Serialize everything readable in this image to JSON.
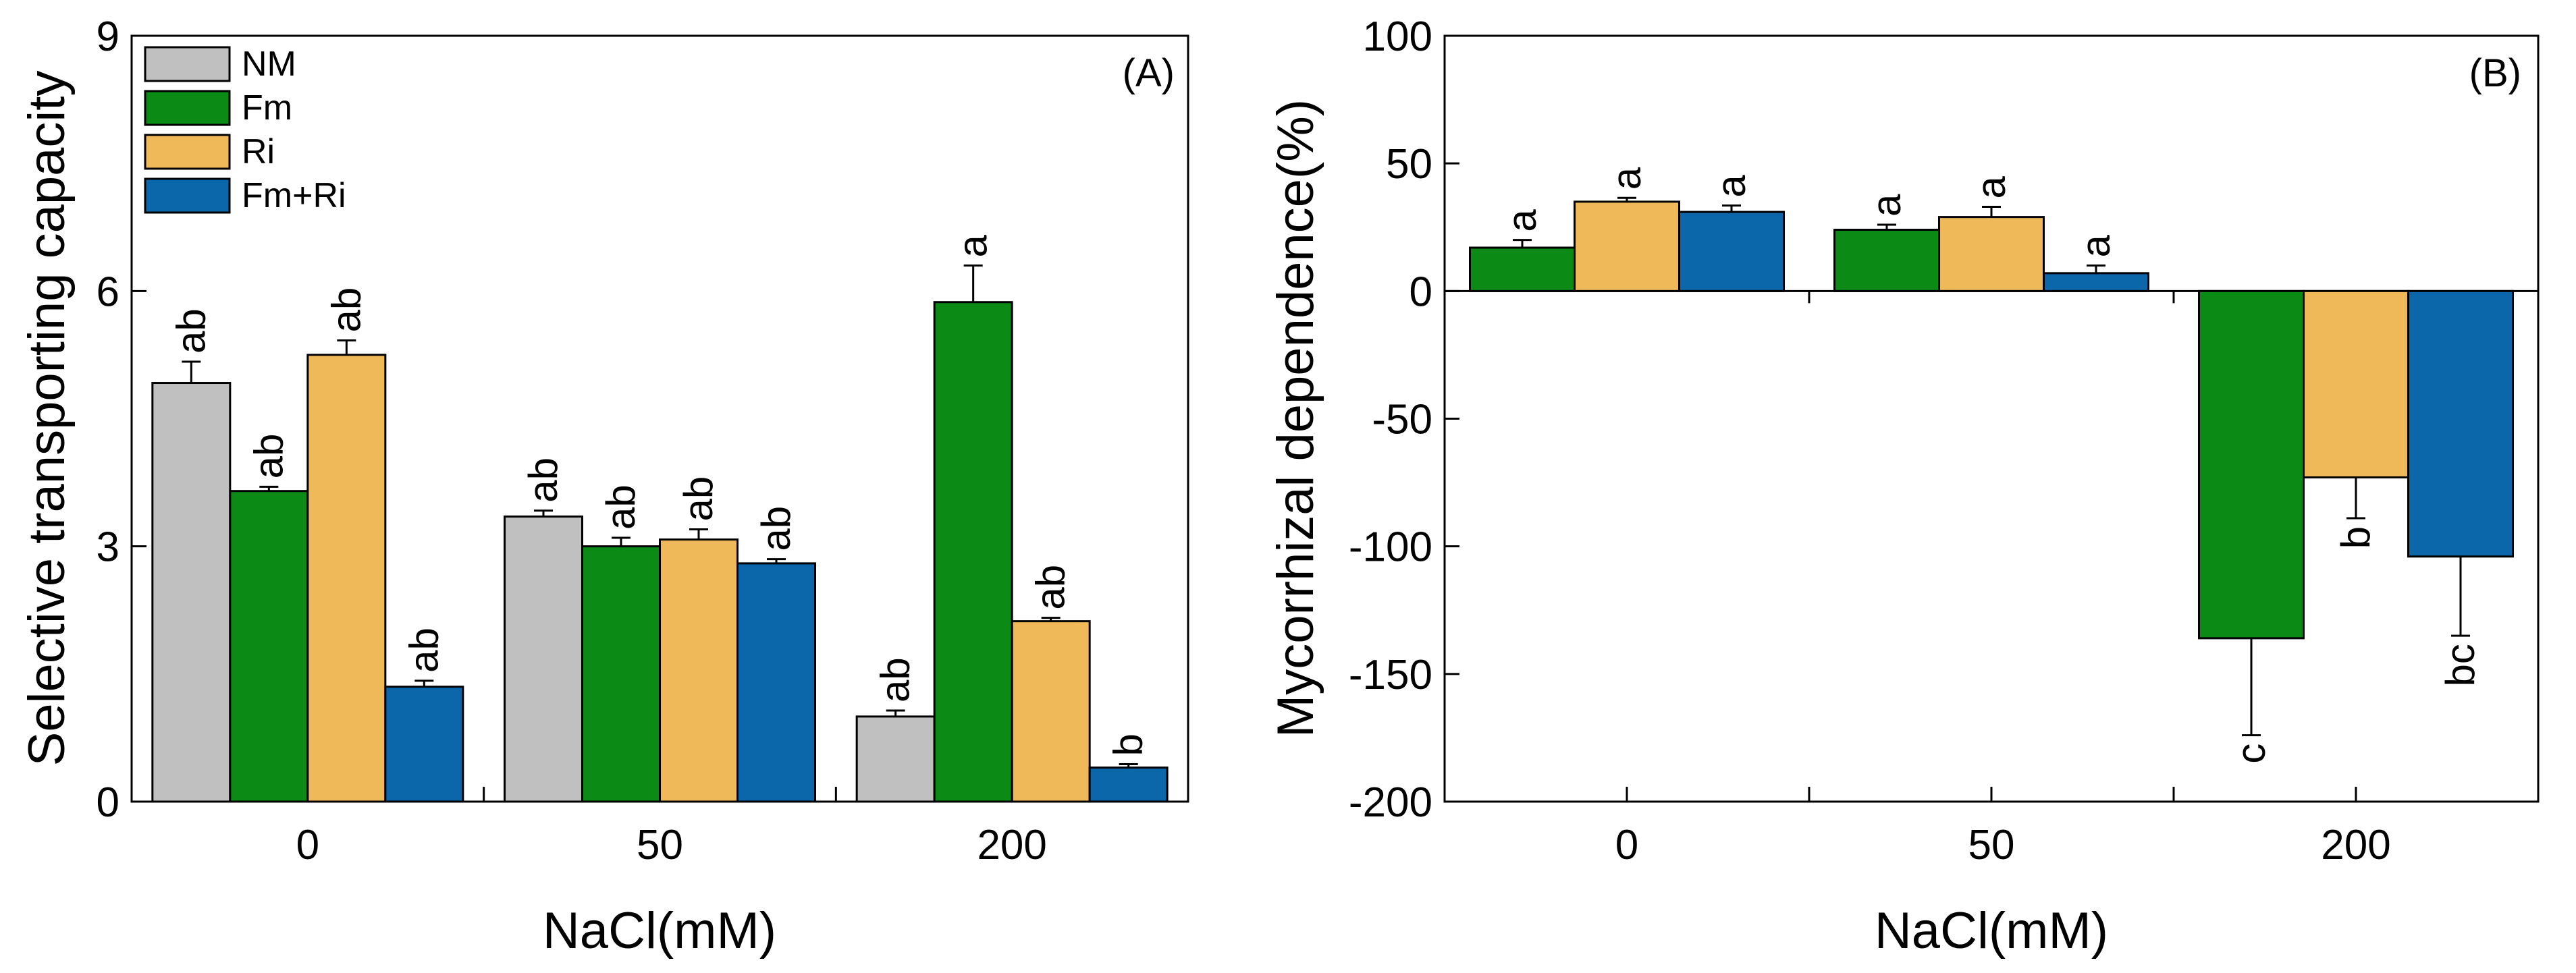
{
  "colors": {
    "NM": "#c0c0c0",
    "Fm": "#0b8a16",
    "Ri": "#efb95a",
    "Fm+Ri": "#0b67aa"
  },
  "chart_data": [
    {
      "type": "bar",
      "panel_label": "(A)",
      "categories": [
        "0",
        "50",
        "200"
      ],
      "xlabel": "NaCl(mM)",
      "ylabel": "Selective transporting capacity",
      "ylim": [
        0,
        9
      ],
      "yticks": [
        "0",
        "3",
        "6",
        "9"
      ],
      "legend": [
        "NM",
        "Fm",
        "Ri",
        "Fm+Ri"
      ],
      "legend_position": "top-left",
      "series": [
        {
          "name": "NM",
          "values": [
            4.92,
            3.35,
            1.0
          ],
          "errors": [
            0.25,
            0.07,
            0.07
          ],
          "labels": [
            "ab",
            "ab",
            "ab"
          ]
        },
        {
          "name": "Fm",
          "values": [
            3.65,
            3.0,
            5.87
          ],
          "errors": [
            0.05,
            0.1,
            0.43
          ],
          "labels": [
            "ab",
            "ab",
            "a"
          ]
        },
        {
          "name": "Ri",
          "values": [
            5.25,
            3.08,
            2.12
          ],
          "errors": [
            0.17,
            0.12,
            0.04
          ],
          "labels": [
            "ab",
            "ab",
            "ab"
          ]
        },
        {
          "name": "Fm+Ri",
          "values": [
            1.35,
            2.8,
            0.4
          ],
          "errors": [
            0.07,
            0.05,
            0.04
          ],
          "labels": [
            "ab",
            "ab",
            "b"
          ]
        }
      ]
    },
    {
      "type": "bar",
      "panel_label": "(B)",
      "categories": [
        "0",
        "50",
        "200"
      ],
      "xlabel": "NaCl(mM)",
      "ylabel": "Mycorrhizal dependence(%)",
      "ylim": [
        -200,
        100
      ],
      "yticks": [
        "100",
        "50",
        "0",
        "-50",
        "-100",
        "-150",
        "-200"
      ],
      "series": [
        {
          "name": "Fm",
          "values": [
            17,
            24,
            -136
          ],
          "errors": [
            3,
            2,
            38
          ],
          "labels": [
            "a",
            "a",
            "c"
          ]
        },
        {
          "name": "Ri",
          "values": [
            35,
            29,
            -73
          ],
          "errors": [
            1.5,
            4,
            16
          ],
          "labels": [
            "a",
            "a",
            "b"
          ]
        },
        {
          "name": "Fm+Ri",
          "values": [
            31,
            7,
            -104
          ],
          "errors": [
            2.5,
            3,
            31
          ],
          "labels": [
            "a",
            "a",
            "bc"
          ]
        }
      ]
    }
  ]
}
